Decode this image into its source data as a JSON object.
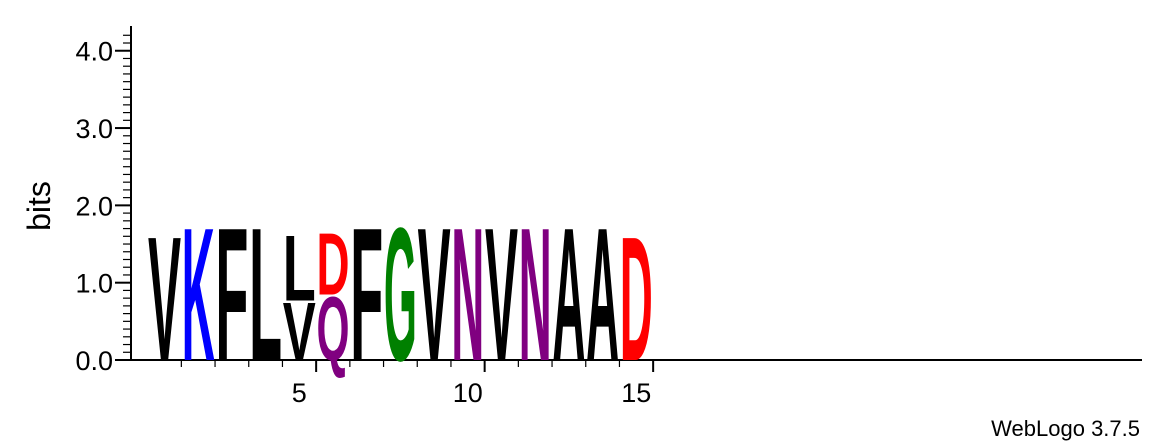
{
  "chart_data": {
    "type": "sequence-logo",
    "ylabel": "bits",
    "ylim": [
      0,
      4.32
    ],
    "y_ticks": [
      "0.0",
      "1.0",
      "2.0",
      "3.0",
      "4.0"
    ],
    "x_ticks": [
      "5",
      "10",
      "15"
    ],
    "x_tick_positions": [
      5,
      10,
      15
    ],
    "credit": "WebLogo 3.7.5",
    "colors": {
      "black": "#000000",
      "blue": "#0000ff",
      "green": "#008000",
      "purple": "#800080",
      "red": "#ff0000"
    },
    "positions": [
      {
        "position": 1,
        "stack": [
          {
            "letter": "V",
            "bits": 1.65,
            "color": "#000000"
          }
        ]
      },
      {
        "position": 2,
        "stack": [
          {
            "letter": "K",
            "bits": 1.77,
            "color": "#0000ff"
          }
        ]
      },
      {
        "position": 3,
        "stack": [
          {
            "letter": "F",
            "bits": 1.77,
            "color": "#000000"
          }
        ]
      },
      {
        "position": 4,
        "stack": [
          {
            "letter": "L",
            "bits": 1.77,
            "color": "#000000"
          }
        ]
      },
      {
        "position": 5,
        "stack": [
          {
            "letter": "V",
            "bits": 0.77,
            "color": "#000000"
          },
          {
            "letter": "L",
            "bits": 0.87,
            "color": "#000000"
          }
        ]
      },
      {
        "position": 6,
        "stack": [
          {
            "letter": "Q",
            "bits": 0.85,
            "color": "#800080"
          },
          {
            "letter": "D",
            "bits": 0.82,
            "color": "#ff0000"
          }
        ]
      },
      {
        "position": 7,
        "stack": [
          {
            "letter": "F",
            "bits": 1.77,
            "color": "#000000"
          }
        ]
      },
      {
        "position": 8,
        "stack": [
          {
            "letter": "G",
            "bits": 1.77,
            "color": "#008000"
          }
        ]
      },
      {
        "position": 9,
        "stack": [
          {
            "letter": "V",
            "bits": 1.77,
            "color": "#000000"
          }
        ]
      },
      {
        "position": 10,
        "stack": [
          {
            "letter": "N",
            "bits": 1.77,
            "color": "#800080"
          }
        ]
      },
      {
        "position": 11,
        "stack": [
          {
            "letter": "V",
            "bits": 1.77,
            "color": "#000000"
          }
        ]
      },
      {
        "position": 12,
        "stack": [
          {
            "letter": "N",
            "bits": 1.77,
            "color": "#800080"
          }
        ]
      },
      {
        "position": 13,
        "stack": [
          {
            "letter": "A",
            "bits": 1.77,
            "color": "#000000"
          }
        ]
      },
      {
        "position": 14,
        "stack": [
          {
            "letter": "A",
            "bits": 1.77,
            "color": "#000000"
          }
        ]
      },
      {
        "position": 15,
        "stack": [
          {
            "letter": "D",
            "bits": 1.65,
            "color": "#ff0000"
          }
        ]
      }
    ]
  }
}
